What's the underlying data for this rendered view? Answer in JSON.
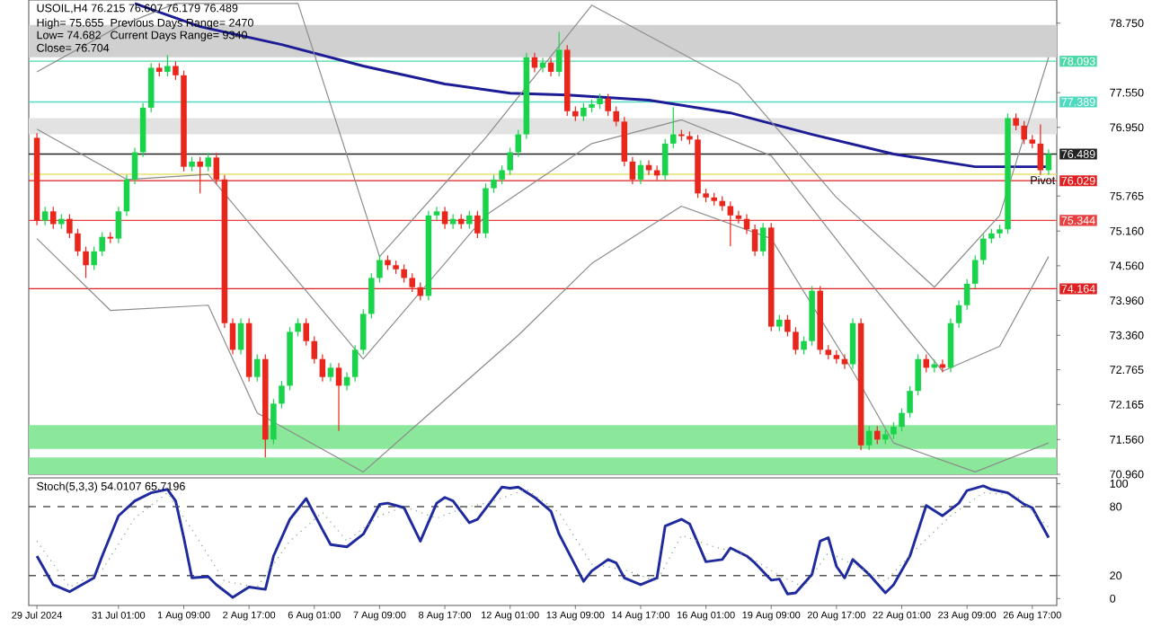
{
  "chart_data": [
    {
      "type": "candlestick",
      "title": "USOIL,H4 76.215 76.607 76.179 76.489",
      "annotations": [
        "High= 75.655",
        "Previous Days Range= 2470",
        "Low= 74.682",
        "Current Days Range= 9340",
        "Close= 76.704"
      ],
      "categories": [
        null,
        null,
        null,
        null,
        null,
        null,
        null,
        null,
        null,
        null,
        null,
        null,
        null,
        null,
        null,
        null,
        null,
        null,
        null,
        null,
        null,
        null,
        null,
        null,
        null,
        null,
        null,
        null,
        null,
        null,
        null,
        null,
        null,
        null,
        null,
        null,
        null,
        null,
        null,
        null,
        null,
        null,
        null,
        null,
        null,
        null,
        null,
        null,
        null,
        null,
        null,
        null,
        null,
        null,
        null,
        null,
        null,
        null,
        null,
        null,
        null,
        null,
        null,
        null,
        null,
        null,
        null,
        null,
        null,
        null,
        null,
        null,
        null,
        null,
        null,
        null,
        null,
        null,
        null,
        null,
        null,
        null,
        null,
        null,
        null,
        null,
        null,
        null,
        null,
        null,
        null,
        null,
        null,
        null,
        null,
        null,
        null,
        null,
        null,
        null,
        null,
        null,
        null,
        null,
        null,
        null,
        null,
        null,
        null,
        null,
        null,
        null,
        null,
        null,
        null,
        null,
        null,
        null,
        null,
        null,
        null,
        null,
        null,
        null,
        null
      ],
      "ohlc": [
        [
          76.77,
          76.85,
          75.26,
          75.34
        ],
        [
          75.34,
          75.58,
          75.26,
          75.5
        ],
        [
          75.5,
          75.58,
          75.2,
          75.28
        ],
        [
          75.28,
          75.45,
          75.2,
          75.37
        ],
        [
          75.37,
          75.45,
          75.04,
          75.12
        ],
        [
          75.12,
          75.2,
          74.73,
          74.81
        ],
        [
          74.81,
          74.89,
          74.35,
          74.57
        ],
        [
          74.57,
          74.89,
          74.49,
          74.81
        ],
        [
          74.81,
          75.14,
          74.73,
          75.06
        ],
        [
          75.06,
          75.14,
          74.95,
          75.03
        ],
        [
          75.03,
          75.58,
          74.95,
          75.5
        ],
        [
          75.5,
          76.13,
          75.42,
          76.05
        ],
        [
          76.05,
          76.6,
          75.97,
          76.52
        ],
        [
          76.52,
          77.37,
          76.44,
          77.29
        ],
        [
          77.29,
          78.06,
          77.21,
          77.98
        ],
        [
          77.98,
          78.06,
          77.83,
          77.91
        ],
        [
          77.91,
          78.2,
          77.83,
          78.01
        ],
        [
          78.01,
          78.09,
          77.77,
          77.85
        ],
        [
          77.85,
          77.93,
          76.19,
          76.27
        ],
        [
          76.27,
          76.44,
          76.19,
          76.36
        ],
        [
          76.36,
          76.44,
          75.81,
          76.27
        ],
        [
          76.27,
          76.51,
          76.19,
          76.43
        ],
        [
          76.43,
          76.51,
          75.97,
          76.05
        ],
        [
          76.05,
          76.13,
          73.49,
          73.57
        ],
        [
          73.57,
          73.65,
          73.03,
          73.11
        ],
        [
          73.11,
          73.65,
          73.03,
          73.57
        ],
        [
          73.57,
          73.65,
          72.56,
          72.64
        ],
        [
          72.64,
          73.03,
          72.56,
          72.95
        ],
        [
          72.95,
          73.03,
          71.25,
          71.56
        ],
        [
          71.56,
          72.26,
          71.48,
          72.18
        ],
        [
          72.18,
          72.57,
          72.1,
          72.49
        ],
        [
          72.49,
          73.5,
          72.41,
          73.42
        ],
        [
          73.42,
          73.65,
          73.34,
          73.57
        ],
        [
          73.57,
          73.65,
          73.18,
          73.26
        ],
        [
          73.26,
          73.34,
          72.87,
          72.95
        ],
        [
          72.95,
          73.03,
          72.56,
          72.64
        ],
        [
          72.64,
          72.88,
          72.56,
          72.8
        ],
        [
          72.8,
          72.88,
          71.71,
          72.49
        ],
        [
          72.49,
          72.72,
          72.41,
          72.64
        ],
        [
          72.64,
          73.19,
          72.56,
          73.11
        ],
        [
          73.11,
          73.81,
          73.03,
          73.73
        ],
        [
          73.73,
          74.43,
          73.65,
          74.35
        ],
        [
          74.35,
          74.74,
          74.27,
          74.66
        ],
        [
          74.66,
          74.74,
          74.49,
          74.57
        ],
        [
          74.57,
          74.65,
          74.42,
          74.5
        ],
        [
          74.5,
          74.58,
          74.27,
          74.35
        ],
        [
          74.35,
          74.43,
          74.11,
          74.19
        ],
        [
          74.19,
          74.27,
          73.96,
          74.04
        ],
        [
          74.04,
          75.51,
          73.96,
          75.43
        ],
        [
          75.43,
          75.58,
          75.35,
          75.5
        ],
        [
          75.5,
          75.58,
          75.2,
          75.28
        ],
        [
          75.28,
          75.45,
          75.2,
          75.37
        ],
        [
          75.37,
          75.45,
          75.2,
          75.28
        ],
        [
          75.28,
          75.51,
          75.2,
          75.43
        ],
        [
          75.43,
          75.51,
          75.04,
          75.12
        ],
        [
          75.12,
          75.98,
          75.04,
          75.9
        ],
        [
          75.9,
          76.13,
          75.82,
          76.05
        ],
        [
          76.05,
          76.29,
          75.97,
          76.21
        ],
        [
          76.21,
          76.6,
          76.13,
          76.52
        ],
        [
          76.52,
          76.91,
          76.44,
          76.83
        ],
        [
          76.83,
          78.24,
          76.75,
          78.16
        ],
        [
          78.16,
          78.24,
          77.9,
          77.98
        ],
        [
          77.98,
          78.15,
          77.9,
          78.07
        ],
        [
          78.07,
          78.15,
          77.83,
          77.91
        ],
        [
          77.91,
          78.6,
          77.83,
          78.29
        ],
        [
          78.29,
          78.37,
          77.15,
          77.23
        ],
        [
          77.23,
          77.31,
          77.06,
          77.14
        ],
        [
          77.14,
          77.37,
          77.06,
          77.29
        ],
        [
          77.29,
          77.43,
          77.21,
          77.35
        ],
        [
          77.35,
          77.53,
          77.27,
          77.45
        ],
        [
          77.45,
          77.53,
          77.15,
          77.23
        ],
        [
          77.23,
          77.31,
          76.97,
          77.05
        ],
        [
          77.05,
          77.13,
          76.28,
          76.36
        ],
        [
          76.36,
          76.44,
          75.97,
          76.05
        ],
        [
          76.05,
          76.38,
          75.97,
          76.3
        ],
        [
          76.3,
          76.38,
          76.13,
          76.21
        ],
        [
          76.21,
          76.29,
          76.04,
          76.12
        ],
        [
          76.12,
          76.75,
          76.04,
          76.67
        ],
        [
          76.67,
          77.3,
          76.59,
          76.83
        ],
        [
          76.83,
          76.91,
          76.72,
          76.8
        ],
        [
          76.8,
          76.88,
          76.66,
          76.74
        ],
        [
          76.74,
          76.82,
          75.73,
          75.81
        ],
        [
          75.81,
          75.89,
          75.66,
          75.74
        ],
        [
          75.74,
          75.82,
          75.6,
          75.68
        ],
        [
          75.68,
          75.76,
          75.51,
          75.59
        ],
        [
          75.59,
          75.67,
          74.9,
          75.43
        ],
        [
          75.43,
          75.51,
          75.29,
          75.37
        ],
        [
          75.37,
          75.45,
          75.11,
          75.19
        ],
        [
          75.19,
          75.27,
          74.73,
          74.81
        ],
        [
          74.81,
          75.3,
          74.73,
          75.22
        ],
        [
          75.22,
          75.3,
          73.43,
          73.51
        ],
        [
          73.51,
          73.71,
          73.43,
          73.63
        ],
        [
          73.63,
          73.71,
          73.34,
          73.42
        ],
        [
          73.42,
          73.5,
          73.03,
          73.11
        ],
        [
          73.11,
          73.34,
          73.03,
          73.26
        ],
        [
          73.26,
          74.21,
          73.18,
          74.13
        ],
        [
          74.13,
          74.21,
          73.03,
          73.11
        ],
        [
          73.11,
          73.19,
          72.94,
          73.02
        ],
        [
          73.02,
          73.1,
          72.87,
          72.95
        ],
        [
          72.95,
          73.03,
          72.78,
          72.86
        ],
        [
          72.86,
          73.65,
          72.78,
          73.57
        ],
        [
          73.57,
          73.65,
          71.38,
          71.46
        ],
        [
          71.46,
          71.79,
          71.38,
          71.71
        ],
        [
          71.71,
          71.79,
          71.48,
          71.56
        ],
        [
          71.56,
          71.73,
          71.48,
          71.65
        ],
        [
          71.65,
          71.86,
          71.57,
          71.78
        ],
        [
          71.78,
          72.1,
          71.7,
          72.02
        ],
        [
          72.02,
          72.48,
          71.94,
          72.4
        ],
        [
          72.4,
          73.03,
          72.32,
          72.95
        ],
        [
          72.95,
          73.03,
          72.72,
          72.8
        ],
        [
          72.8,
          72.94,
          72.72,
          72.86
        ],
        [
          72.86,
          72.94,
          72.72,
          72.8
        ],
        [
          72.8,
          73.65,
          72.72,
          73.57
        ],
        [
          73.57,
          73.96,
          73.49,
          73.88
        ],
        [
          73.88,
          74.33,
          73.8,
          74.25
        ],
        [
          74.25,
          74.74,
          74.17,
          74.66
        ],
        [
          74.66,
          75.11,
          74.58,
          75.03
        ],
        [
          75.03,
          75.2,
          74.95,
          75.12
        ],
        [
          75.12,
          75.27,
          75.04,
          75.19
        ],
        [
          75.19,
          77.19,
          75.11,
          77.11
        ],
        [
          77.11,
          77.19,
          76.9,
          76.98
        ],
        [
          76.98,
          77.06,
          76.66,
          76.74
        ],
        [
          76.74,
          76.82,
          76.59,
          76.67
        ],
        [
          76.67,
          77.0,
          76.13,
          76.21
        ],
        [
          76.21,
          76.57,
          76.13,
          76.49
        ]
      ],
      "colors": [
        "#e8261c",
        "#19d44a",
        "#e8261c",
        "#19d44a",
        "#e8261c",
        "#e8261c",
        "#e8261c",
        "#19d44a",
        "#19d44a",
        "#e8261c",
        "#19d44a",
        "#19d44a",
        "#19d44a",
        "#19d44a",
        "#19d44a",
        "#e8261c",
        "#19d44a",
        "#e8261c",
        "#e8261c",
        "#19d44a",
        "#e8261c",
        "#19d44a",
        "#e8261c",
        "#e8261c",
        "#e8261c",
        "#19d44a",
        "#e8261c",
        "#19d44a",
        "#e8261c",
        "#19d44a",
        "#19d44a",
        "#19d44a",
        "#19d44a",
        "#e8261c",
        "#e8261c",
        "#e8261c",
        "#19d44a",
        "#e8261c",
        "#19d44a",
        "#19d44a",
        "#19d44a",
        "#19d44a",
        "#19d44a",
        "#e8261c",
        "#e8261c",
        "#e8261c",
        "#e8261c",
        "#e8261c",
        "#19d44a",
        "#19d44a",
        "#e8261c",
        "#19d44a",
        "#e8261c",
        "#19d44a",
        "#e8261c",
        "#19d44a",
        "#19d44a",
        "#19d44a",
        "#19d44a",
        "#19d44a",
        "#19d44a",
        "#e8261c",
        "#19d44a",
        "#e8261c",
        "#19d44a",
        "#e8261c",
        "#e8261c",
        "#19d44a",
        "#19d44a",
        "#19d44a",
        "#e8261c",
        "#e8261c",
        "#e8261c",
        "#e8261c",
        "#19d44a",
        "#e8261c",
        "#e8261c",
        "#19d44a",
        "#19d44a",
        "#e8261c",
        "#e8261c",
        "#e8261c",
        "#e8261c",
        "#e8261c",
        "#e8261c",
        "#e8261c",
        "#e8261c",
        "#e8261c",
        "#e8261c",
        "#19d44a",
        "#e8261c",
        "#19d44a",
        "#e8261c",
        "#e8261c",
        "#19d44a",
        "#19d44a",
        "#e8261c",
        "#e8261c",
        "#e8261c",
        "#e8261c",
        "#19d44a",
        "#e8261c",
        "#19d44a",
        "#e8261c",
        "#19d44a",
        "#19d44a",
        "#19d44a",
        "#19d44a",
        "#19d44a",
        "#e8261c",
        "#19d44a",
        "#e8261c",
        "#19d44a",
        "#19d44a",
        "#19d44a",
        "#19d44a",
        "#19d44a",
        "#19d44a",
        "#19d44a",
        "#19d44a",
        "#e8261c",
        "#e8261c",
        "#e8261c",
        "#e8261c",
        "#19d44a"
      ],
      "series": [
        {
          "type": "line",
          "color": "#1c1c96",
          "values": [
            null,
            null,
            null,
            null,
            null,
            null,
            null,
            null,
            null,
            null,
            null,
            null,
            79.09,
            null,
            null,
            null,
            null,
            null,
            null,
            null,
            78.69,
            null,
            null,
            null,
            null,
            null,
            null,
            null,
            null,
            null,
            78.38,
            null,
            null,
            null,
            null,
            null,
            null,
            null,
            null,
            null,
            78.01,
            null,
            null,
            null,
            null,
            null,
            null,
            null,
            null,
            null,
            77.7,
            null,
            null,
            null,
            null,
            null,
            null,
            null,
            77.54,
            null,
            null,
            null,
            null,
            null,
            null,
            77.51,
            null,
            null,
            null,
            null,
            null,
            null,
            null,
            null,
            null,
            77.42,
            null,
            null,
            null,
            null,
            null,
            null,
            null,
            null,
            null,
            77.2,
            null,
            null,
            null,
            null,
            null,
            null,
            null,
            null,
            null,
            76.83,
            null,
            null,
            null,
            null,
            null,
            null,
            null,
            null,
            null,
            76.49,
            null,
            null,
            null,
            null,
            null,
            null,
            null,
            null,
            null,
            76.27,
            null,
            null,
            null,
            null,
            null,
            null,
            null,
            null,
            76.27
          ]
        },
        {
          "type": "line",
          "color": "#8c8c8c",
          "values": [
            77.91,
            null,
            null,
            null,
            null,
            null,
            null,
            null,
            null,
            null,
            78.69,
            null,
            null,
            null,
            null,
            null,
            null,
            79.09,
            null,
            null,
            null,
            null,
            null,
            null,
            null,
            null,
            null,
            null,
            null,
            null,
            null,
            null,
            79.09,
            null,
            null,
            null,
            null,
            null,
            null,
            null,
            null,
            null,
            74.72,
            null,
            null,
            null,
            null,
            null,
            null,
            null,
            null,
            null,
            null,
            null,
            null,
            76.77,
            null,
            null,
            null,
            null,
            null,
            null,
            null,
            null,
            null,
            null,
            null,
            null,
            79.06,
            null,
            null,
            null,
            null,
            null,
            null,
            null,
            null,
            null,
            null,
            null,
            null,
            null,
            null,
            null,
            null,
            null,
            77.7,
            null,
            null,
            null,
            null,
            null,
            null,
            null,
            null,
            null,
            null,
            null,
            75.74,
            null,
            null,
            null,
            null,
            null,
            null,
            null,
            null,
            null,
            null,
            null,
            74.19,
            null,
            null,
            null,
            null,
            null,
            null,
            null,
            75.43,
            null,
            null,
            null,
            null,
            null,
            78.16
          ]
        },
        {
          "type": "line",
          "color": "#8c8c8c",
          "values": [
            76.92,
            null,
            null,
            null,
            null,
            null,
            null,
            null,
            null,
            null,
            null,
            76.05,
            null,
            null,
            null,
            null,
            null,
            null,
            null,
            null,
            null,
            76.14,
            null,
            null,
            null,
            null,
            null,
            null,
            null,
            null,
            null,
            null,
            null,
            null,
            null,
            null,
            null,
            null,
            null,
            null,
            72.95,
            null,
            null,
            null,
            null,
            null,
            null,
            null,
            null,
            null,
            null,
            null,
            null,
            null,
            null,
            75.43,
            null,
            null,
            null,
            null,
            null,
            null,
            null,
            null,
            null,
            null,
            null,
            null,
            76.67,
            null,
            null,
            null,
            null,
            null,
            null,
            null,
            null,
            null,
            null,
            77.08,
            null,
            null,
            null,
            null,
            null,
            null,
            null,
            null,
            null,
            null,
            76.46,
            null,
            null,
            null,
            null,
            null,
            null,
            null,
            null,
            null,
            null,
            null,
            74.29,
            null,
            null,
            null,
            null,
            null,
            null,
            null,
            null,
            72.74,
            null,
            null,
            null,
            null,
            null,
            null,
            73.17,
            null,
            null,
            null,
            null,
            null,
            74.72
          ]
        },
        {
          "type": "line",
          "color": "#8c8c8c",
          "values": [
            75.03,
            null,
            null,
            null,
            null,
            null,
            null,
            null,
            null,
            73.79,
            null,
            null,
            null,
            null,
            null,
            null,
            null,
            null,
            null,
            null,
            null,
            73.88,
            null,
            null,
            null,
            null,
            null,
            72.02,
            null,
            null,
            null,
            null,
            null,
            null,
            null,
            null,
            null,
            null,
            null,
            null,
            71.0,
            null,
            null,
            null,
            null,
            null,
            null,
            null,
            null,
            null,
            null,
            null,
            null,
            null,
            null,
            null,
            null,
            null,
            null,
            73.36,
            null,
            null,
            null,
            null,
            null,
            null,
            null,
            null,
            74.6,
            null,
            null,
            null,
            null,
            null,
            null,
            null,
            null,
            null,
            null,
            75.59,
            null,
            null,
            null,
            null,
            null,
            null,
            null,
            null,
            null,
            null,
            75.03,
            null,
            null,
            null,
            null,
            null,
            null,
            null,
            null,
            null,
            72.74,
            null,
            null,
            null,
            null,
            71.5,
            null,
            null,
            null,
            null,
            null,
            null,
            null,
            null,
            null,
            71.0,
            null,
            null,
            null,
            null,
            null,
            null,
            null,
            null,
            71.5
          ]
        }
      ],
      "bands": [
        {
          "axis": "y",
          "from": 78.16,
          "to": 78.72,
          "color": "#d0d0d0"
        },
        {
          "axis": "y",
          "from": 76.83,
          "to": 77.11,
          "color": "#e2e2e2"
        },
        {
          "axis": "y",
          "from": 71.4,
          "to": 71.81,
          "color": "#8be89a"
        },
        {
          "axis": "y",
          "from": 70.96,
          "to": 71.25,
          "color": "#8be89a"
        }
      ],
      "ref_lines": [
        {
          "axis": "y",
          "value": 78.093,
          "label": "78.093",
          "color": "#4fd9a8"
        },
        {
          "axis": "y",
          "value": 77.389,
          "label": "77.389",
          "color": "#4fd9c0"
        },
        {
          "axis": "y",
          "value": 76.489,
          "label": "76.489",
          "color": "#222222"
        },
        {
          "axis": "y",
          "value": 76.029,
          "label": "76.029",
          "color": "#e02020"
        },
        {
          "axis": "y",
          "value": 76.14,
          "label": "Pivot",
          "color": "#e8e070"
        },
        {
          "axis": "y",
          "value": 75.344,
          "label": "75.344",
          "color": "#e84040"
        },
        {
          "axis": "y",
          "value": 74.164,
          "label": "74.164",
          "color": "#e02020"
        }
      ],
      "ylim": [
        70.96,
        79.15
      ],
      "yticks": [
        {
          "value": 70.96,
          "label": "70.960"
        },
        {
          "value": 71.56,
          "label": "71.560"
        },
        {
          "value": 72.165,
          "label": "72.165"
        },
        {
          "value": 72.765,
          "label": "72.765"
        },
        {
          "value": 73.36,
          "label": "73.360"
        },
        {
          "value": 73.96,
          "label": "73.960"
        },
        {
          "value": 74.56,
          "label": "74.560"
        },
        {
          "value": 75.16,
          "label": "75.160"
        },
        {
          "value": 75.765,
          "label": "75.765"
        },
        {
          "value": 76.95,
          "label": "76.950"
        },
        {
          "value": 77.55,
          "label": "77.550"
        },
        {
          "value": 78.75,
          "label": "78.750"
        }
      ],
      "tick_labels": "y"
    },
    {
      "type": "line",
      "title": "Stoch(5,3,3) 54.0107 65.7196",
      "categories": [
        "29 Jul 2024",
        null,
        null,
        null,
        null,
        null,
        null,
        null,
        null,
        null,
        "31 Jul 01:00",
        null,
        null,
        null,
        null,
        null,
        null,
        null,
        "1 Aug 09:00",
        null,
        null,
        null,
        null,
        null,
        null,
        null,
        "2 Aug 17:00",
        null,
        null,
        null,
        null,
        null,
        null,
        null,
        "6 Aug 01:00",
        null,
        null,
        null,
        null,
        null,
        null,
        null,
        "7 Aug 09:00",
        null,
        null,
        null,
        null,
        null,
        null,
        null,
        "8 Aug 17:00",
        null,
        null,
        null,
        null,
        null,
        null,
        null,
        "12 Aug 01:00",
        null,
        null,
        null,
        null,
        null,
        null,
        null,
        "13 Aug 09:00",
        null,
        null,
        null,
        null,
        null,
        null,
        null,
        "14 Aug 17:00",
        null,
        null,
        null,
        null,
        null,
        null,
        null,
        "16 Aug 01:00",
        null,
        null,
        null,
        null,
        null,
        null,
        null,
        "19 Aug 09:00",
        null,
        null,
        null,
        null,
        null,
        null,
        null,
        "20 Aug 17:00",
        null,
        null,
        null,
        null,
        null,
        null,
        null,
        "22 Aug 01:00",
        null,
        null,
        null,
        null,
        null,
        null,
        null,
        "23 Aug 09:00",
        null,
        null,
        null,
        null,
        null,
        null,
        null,
        "26 Aug 17:00",
        null,
        null
      ],
      "series": [
        {
          "color": "#1f2a9e",
          "values": [
            37,
            null,
            12,
            null,
            6,
            null,
            null,
            18,
            37,
            null,
            72,
            null,
            85,
            null,
            92,
            null,
            95,
            85,
            53,
            18,
            null,
            19,
            12,
            null,
            1,
            null,
            10,
            null,
            8,
            37,
            null,
            69,
            null,
            87,
            null,
            60,
            47,
            null,
            45,
            null,
            56,
            null,
            82,
            83,
            null,
            79,
            null,
            50,
            null,
            83,
            88,
            85,
            null,
            66,
            69,
            null,
            null,
            97,
            96,
            97,
            null,
            88,
            null,
            76,
            56,
            null,
            null,
            15,
            24,
            null,
            34,
            31,
            18,
            null,
            12,
            null,
            18,
            63,
            null,
            69,
            65,
            null,
            32,
            null,
            34,
            44,
            null,
            37,
            31,
            null,
            16,
            17,
            4,
            5,
            null,
            21,
            50,
            53,
            28,
            18,
            34,
            null,
            21,
            null,
            5,
            12,
            null,
            37,
            null,
            81,
            null,
            72,
            null,
            83,
            94,
            null,
            98,
            95,
            null,
            92,
            null,
            82,
            79,
            null,
            53
          ]
        },
        {
          "color": "#7fa07f",
          "line_style": "dotted",
          "values": [
            50,
            null,
            null,
            null,
            10,
            null,
            null,
            null,
            25,
            null,
            null,
            null,
            70,
            null,
            null,
            null,
            92,
            null,
            null,
            60,
            null,
            null,
            null,
            15,
            null,
            null,
            null,
            10,
            null,
            null,
            null,
            50,
            null,
            null,
            null,
            75,
            null,
            null,
            50,
            null,
            null,
            null,
            72,
            null,
            null,
            80,
            null,
            null,
            null,
            70,
            null,
            null,
            78,
            null,
            null,
            null,
            85,
            null,
            null,
            null,
            95,
            null,
            null,
            null,
            75,
            null,
            null,
            null,
            30,
            null,
            null,
            null,
            25,
            null,
            null,
            null,
            15,
            null,
            null,
            55,
            null,
            null,
            null,
            45,
            null,
            null,
            null,
            38,
            null,
            null,
            null,
            20,
            null,
            null,
            10,
            null,
            null,
            40,
            null,
            null,
            30,
            null,
            null,
            null,
            15,
            null,
            null,
            null,
            45,
            null,
            null,
            null,
            72,
            null,
            null,
            null,
            92,
            null,
            null,
            null,
            90,
            null,
            null,
            null,
            62
          ]
        }
      ],
      "ref_lines": [
        {
          "axis": "y",
          "value": 20,
          "color": "#555555",
          "line_style": "dashed"
        },
        {
          "axis": "y",
          "value": 80,
          "color": "#555555",
          "line_style": "dashed"
        }
      ],
      "ylim": [
        -6,
        105
      ],
      "yticks": [
        0,
        20,
        80,
        100
      ]
    }
  ]
}
